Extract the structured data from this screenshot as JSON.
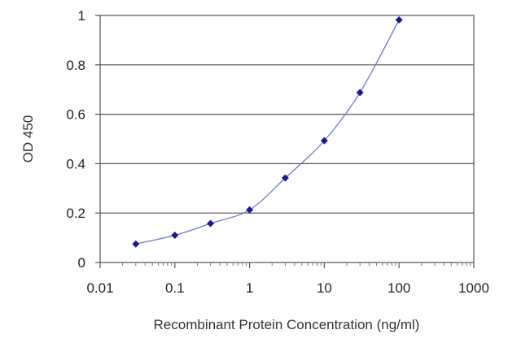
{
  "chart_data": {
    "type": "line",
    "x_scale": "log",
    "xlabel": "Recombinant Protein Concentration (ng/ml)",
    "ylabel": "OD 450",
    "xlim": [
      0.01,
      1000
    ],
    "ylim": [
      0,
      1
    ],
    "grid": "horizontal",
    "x_ticks": [
      0.01,
      0.1,
      1,
      10,
      100,
      1000
    ],
    "x_tick_labels": [
      "0.01",
      "0.1",
      "1",
      "10",
      "100",
      "1000"
    ],
    "y_ticks": [
      0,
      0.2,
      0.4,
      0.6,
      0.8,
      1
    ],
    "y_tick_labels": [
      "0",
      "0.2",
      "0.4",
      "0.6",
      "0.8",
      "1"
    ],
    "series": [
      {
        "color": "#1a1a8c",
        "line_color": "#6e78c8",
        "x": [
          0.03,
          0.1,
          0.3,
          1,
          3,
          10,
          30,
          100
        ],
        "y": [
          0.075,
          0.11,
          0.158,
          0.213,
          0.342,
          0.493,
          0.688,
          0.982
        ]
      }
    ]
  }
}
